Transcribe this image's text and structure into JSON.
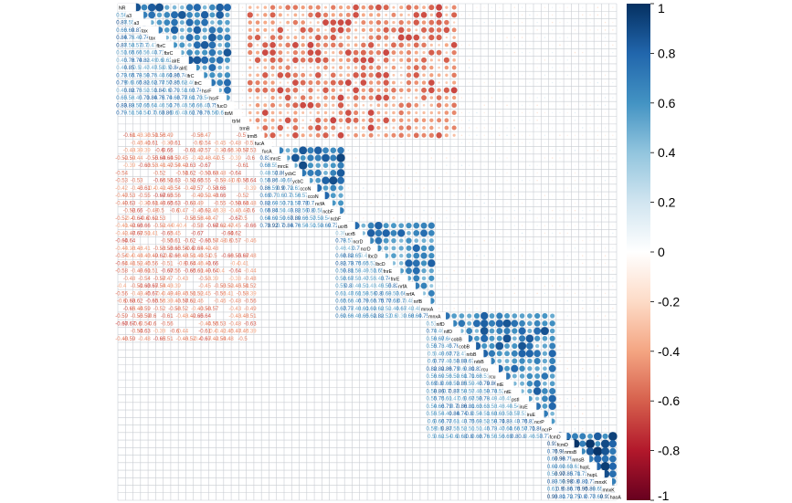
{
  "chart_data": {
    "type": "heatmap",
    "subtype": "correlation-matrix (mixed: numbers lower triangle, circles upper triangle)",
    "n_variables": 66,
    "value_range": [
      -1,
      1
    ],
    "title": "",
    "legend": {
      "type": "colorbar",
      "placement": "right",
      "ticks": [
        1,
        0.8,
        0.6,
        0.4,
        0.2,
        0,
        -0.2,
        -0.4,
        -0.6,
        -0.8,
        -1
      ],
      "tick_labels": [
        "1",
        "0.8",
        "0.6",
        "0.4",
        "0.2",
        "0",
        "-0.2",
        "-0.4",
        "-0.6",
        "-0.8",
        "-1"
      ],
      "colors": [
        "#053061",
        "#2166AC",
        "#4393C3",
        "#92C5DE",
        "#D1E5F0",
        "#FFFFFF",
        "#FDDBC7",
        "#F4A582",
        "#D6604D",
        "#B2182B",
        "#67001F"
      ]
    },
    "diagonal_labels_visible": [
      "NR",
      "a3",
      "tax",
      "fbrC",
      "alrE",
      "lfrC",
      "hsrF",
      "fucO",
      "ttrM",
      "trmB",
      "fucA",
      "mrcE",
      "ycbC",
      "ccoN",
      "ncfA",
      "ncbF",
      "ucrB",
      "ncrD",
      "lbcD",
      "fnrE",
      "nrfA",
      "nrfB",
      "mnxA",
      "nifD",
      "cobB",
      "nrbB",
      "rcu",
      "ntE",
      "pstI",
      "iruE",
      "ncrP",
      "fcmD",
      "nmsB",
      "hupL",
      "mnxK",
      "haoA"
    ],
    "series": [
      {
        "name": "block_positive_1",
        "rows": [
          1,
          15
        ],
        "cols": [
          1,
          15
        ],
        "mean_r": 0.65
      },
      {
        "name": "block_negative_top_right",
        "rows": [
          1,
          18
        ],
        "cols": [
          18,
          45
        ],
        "mean_r": -0.45
      },
      {
        "name": "block_positive_2",
        "rows": [
          20,
          30
        ],
        "cols": [
          20,
          30
        ],
        "mean_r": 0.7
      },
      {
        "name": "block_positive_3",
        "rows": [
          30,
          42
        ],
        "cols": [
          30,
          42
        ],
        "mean_r": 0.6
      },
      {
        "name": "block_positive_4",
        "rows": [
          42,
          58
        ],
        "cols": [
          42,
          58
        ],
        "mean_r": 0.65
      },
      {
        "name": "block_positive_5",
        "rows": [
          58,
          66
        ],
        "cols": [
          58,
          66
        ],
        "mean_r": 0.8
      }
    ],
    "sample_lower_labels": [
      "0.45",
      "0.57",
      "0.58",
      "0.63",
      "0.7",
      "0.74",
      "0.77",
      "0.81",
      "0.92",
      "-0.4",
      "-0.47",
      "-0.51",
      "-0.53",
      "-0.59",
      "-0.63",
      "-0.7",
      "-0.81"
    ]
  }
}
